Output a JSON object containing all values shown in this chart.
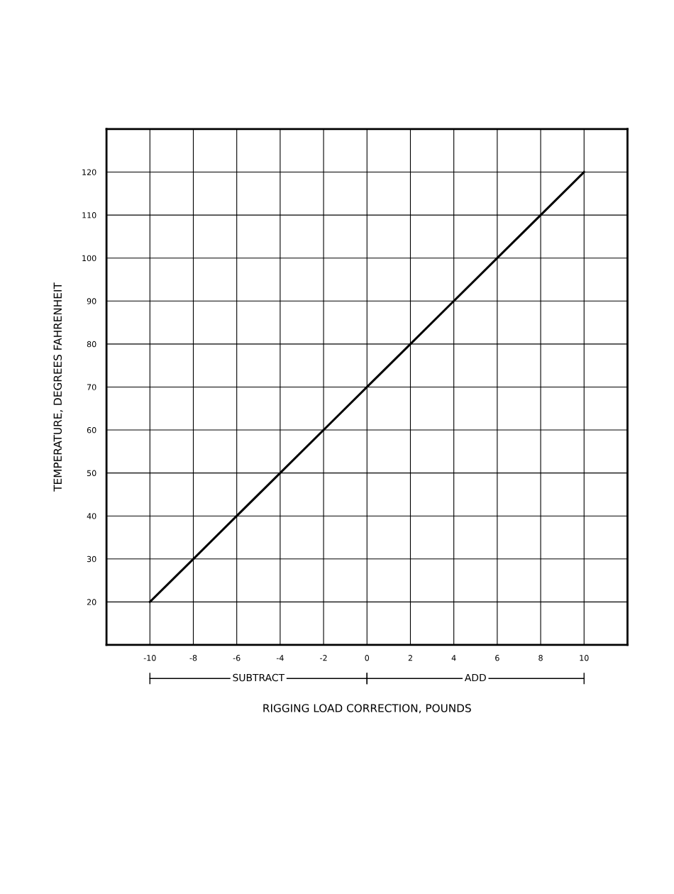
{
  "chart_data": {
    "type": "line",
    "xlabel": "RIGGING LOAD CORRECTION, POUNDS",
    "ylabel": "TEMPERATURE, DEGREES FAHRENHEIT",
    "x": [
      -10,
      -8,
      -6,
      -4,
      -2,
      0,
      2,
      4,
      6,
      8,
      10
    ],
    "series": [
      {
        "color": "#000000",
        "values": [
          20,
          30,
          40,
          50,
          60,
          70,
          80,
          90,
          100,
          110,
          120
        ]
      }
    ],
    "xlim": [
      -12,
      12
    ],
    "ylim": [
      10,
      130
    ],
    "xticks": [
      -10,
      -8,
      -6,
      -4,
      -2,
      0,
      2,
      4,
      6,
      8,
      10
    ],
    "yticks": [
      20,
      30,
      40,
      50,
      60,
      70,
      80,
      90,
      100,
      110,
      120
    ],
    "grid": true,
    "marker": "none",
    "line_style": "solid",
    "annotations": [
      "SUBTRACT",
      "ADD"
    ]
  }
}
